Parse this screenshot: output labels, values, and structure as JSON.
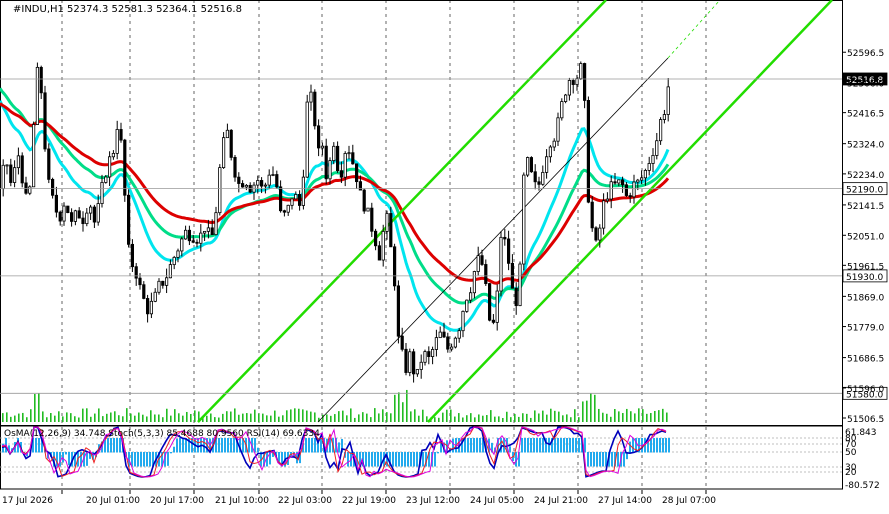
{
  "header": {
    "symbol": "#INDU,H1",
    "ohlc": "52374.3 52581.3 52364.1 52516.8"
  },
  "colors": {
    "background": "#ffffff",
    "candle": "#000000",
    "ema_fast": "#00e5ee",
    "ema_mid": "#00dd88",
    "ema_slow": "#dd0000",
    "channel": "#22dd00",
    "volume": "#22bb22",
    "histogram": "#22aaee",
    "stoch_main": "#0000bb",
    "stoch_signal": "#ee2222",
    "rsi": "#dd00dd",
    "grid": "#000000",
    "price_label_bg": "#ffffff"
  },
  "chart_data": {
    "type": "candlestick",
    "ylim": [
      51506.5,
      52686.6
    ],
    "y_ticks": [
      "52596.5",
      "52506.0",
      "52416.5",
      "52324.0",
      "52234.0",
      "52141.5",
      "52051.0",
      "51961.5",
      "51869.0",
      "51779.0",
      "51686.5",
      "51596.0",
      "51506.5"
    ],
    "x_ticks": [
      "17 Jul 2026",
      "20 Jul 01:00",
      "20 Jul 17:00",
      "21 Jul 10:00",
      "22 Jul 03:00",
      "22 Jul 19:00",
      "23 Jul 12:00",
      "24 Jul 05:00",
      "24 Jul 21:00",
      "27 Jul 14:00",
      "28 Jul 07:00"
    ],
    "price_labels": [
      {
        "value": 52516.8,
        "text": "52516.8",
        "highlight": true
      },
      {
        "value": 52190.0,
        "text": "52190.0",
        "highlight": false
      },
      {
        "value": 51930.0,
        "text": "51930.0",
        "highlight": false
      },
      {
        "value": 51580.0,
        "text": "51580.0",
        "highlight": false
      }
    ],
    "close_path": [
      [
        0,
        52190
      ],
      [
        4,
        52290
      ],
      [
        10,
        52200
      ],
      [
        18,
        52300
      ],
      [
        24,
        52150
      ],
      [
        30,
        52200
      ],
      [
        34,
        52500
      ],
      [
        38,
        52560
      ],
      [
        42,
        52400
      ],
      [
        46,
        52220
      ],
      [
        52,
        52150
      ],
      [
        58,
        52100
      ],
      [
        64,
        52160
      ],
      [
        70,
        52080
      ],
      [
        76,
        52120
      ],
      [
        82,
        52100
      ],
      [
        88,
        52160
      ],
      [
        94,
        52080
      ],
      [
        100,
        52180
      ],
      [
        106,
        52260
      ],
      [
        112,
        52300
      ],
      [
        116,
        52380
      ],
      [
        120,
        52320
      ],
      [
        124,
        52150
      ],
      [
        128,
        51980
      ],
      [
        134,
        51950
      ],
      [
        140,
        51880
      ],
      [
        146,
        51830
      ],
      [
        152,
        51850
      ],
      [
        158,
        51900
      ],
      [
        164,
        51920
      ],
      [
        172,
        51980
      ],
      [
        178,
        52020
      ],
      [
        184,
        52060
      ],
      [
        192,
        52050
      ],
      [
        198,
        52040
      ],
      [
        204,
        52080
      ],
      [
        210,
        52030
      ],
      [
        216,
        52150
      ],
      [
        220,
        52300
      ],
      [
        226,
        52360
      ],
      [
        232,
        52260
      ],
      [
        238,
        52200
      ],
      [
        244,
        52220
      ],
      [
        250,
        52190
      ],
      [
        256,
        52220
      ],
      [
        262,
        52180
      ],
      [
        268,
        52240
      ],
      [
        274,
        52230
      ],
      [
        280,
        52100
      ],
      [
        286,
        52120
      ],
      [
        292,
        52180
      ],
      [
        300,
        52130
      ],
      [
        306,
        52440
      ],
      [
        310,
        52460
      ],
      [
        314,
        52380
      ],
      [
        318,
        52280
      ],
      [
        322,
        52330
      ],
      [
        326,
        52200
      ],
      [
        330,
        52300
      ],
      [
        334,
        52350
      ],
      [
        338,
        52200
      ],
      [
        342,
        52280
      ],
      [
        346,
        52330
      ],
      [
        350,
        52280
      ],
      [
        354,
        52250
      ],
      [
        358,
        52180
      ],
      [
        362,
        52150
      ],
      [
        366,
        52120
      ],
      [
        370,
        52080
      ],
      [
        374,
        52040
      ],
      [
        378,
        51990
      ],
      [
        382,
        52060
      ],
      [
        386,
        52100
      ],
      [
        390,
        52000
      ],
      [
        394,
        51900
      ],
      [
        398,
        51700
      ],
      [
        402,
        51690
      ],
      [
        406,
        51640
      ],
      [
        410,
        51720
      ],
      [
        414,
        51600
      ],
      [
        418,
        51660
      ],
      [
        422,
        51700
      ],
      [
        428,
        51680
      ],
      [
        434,
        51730
      ],
      [
        440,
        51760
      ],
      [
        446,
        51710
      ],
      [
        452,
        51740
      ],
      [
        458,
        51780
      ],
      [
        464,
        51860
      ],
      [
        470,
        51900
      ],
      [
        476,
        51980
      ],
      [
        482,
        51960
      ],
      [
        488,
        51800
      ],
      [
        494,
        51780
      ],
      [
        500,
        52060
      ],
      [
        506,
        52010
      ],
      [
        510,
        51900
      ],
      [
        514,
        51850
      ],
      [
        518,
        51880
      ],
      [
        522,
        52210
      ],
      [
        526,
        52270
      ],
      [
        530,
        52230
      ],
      [
        536,
        52180
      ],
      [
        542,
        52260
      ],
      [
        548,
        52330
      ],
      [
        554,
        52350
      ],
      [
        558,
        52400
      ],
      [
        562,
        52460
      ],
      [
        566,
        52500
      ],
      [
        570,
        52530
      ],
      [
        574,
        52510
      ],
      [
        578,
        52540
      ],
      [
        582,
        52560
      ],
      [
        586,
        52200
      ],
      [
        590,
        52090
      ],
      [
        594,
        52010
      ],
      [
        598,
        52060
      ],
      [
        602,
        52140
      ],
      [
        608,
        52190
      ],
      [
        614,
        52200
      ],
      [
        620,
        52210
      ],
      [
        626,
        52160
      ],
      [
        632,
        52200
      ],
      [
        638,
        52210
      ],
      [
        644,
        52240
      ],
      [
        650,
        52290
      ],
      [
        656,
        52340
      ],
      [
        660,
        52400
      ],
      [
        664,
        52430
      ],
      [
        668,
        52516
      ]
    ]
  },
  "indicators": {
    "label": "OsMA(12,26,9) 34.748  Stoch(5,3,3) 85.4688 80.9560  RSI(14) 69.6334",
    "scale_top": "61.843",
    "scale_bottom": "-80.572",
    "levels": [
      "80",
      "70",
      "50",
      "30",
      "20"
    ]
  }
}
